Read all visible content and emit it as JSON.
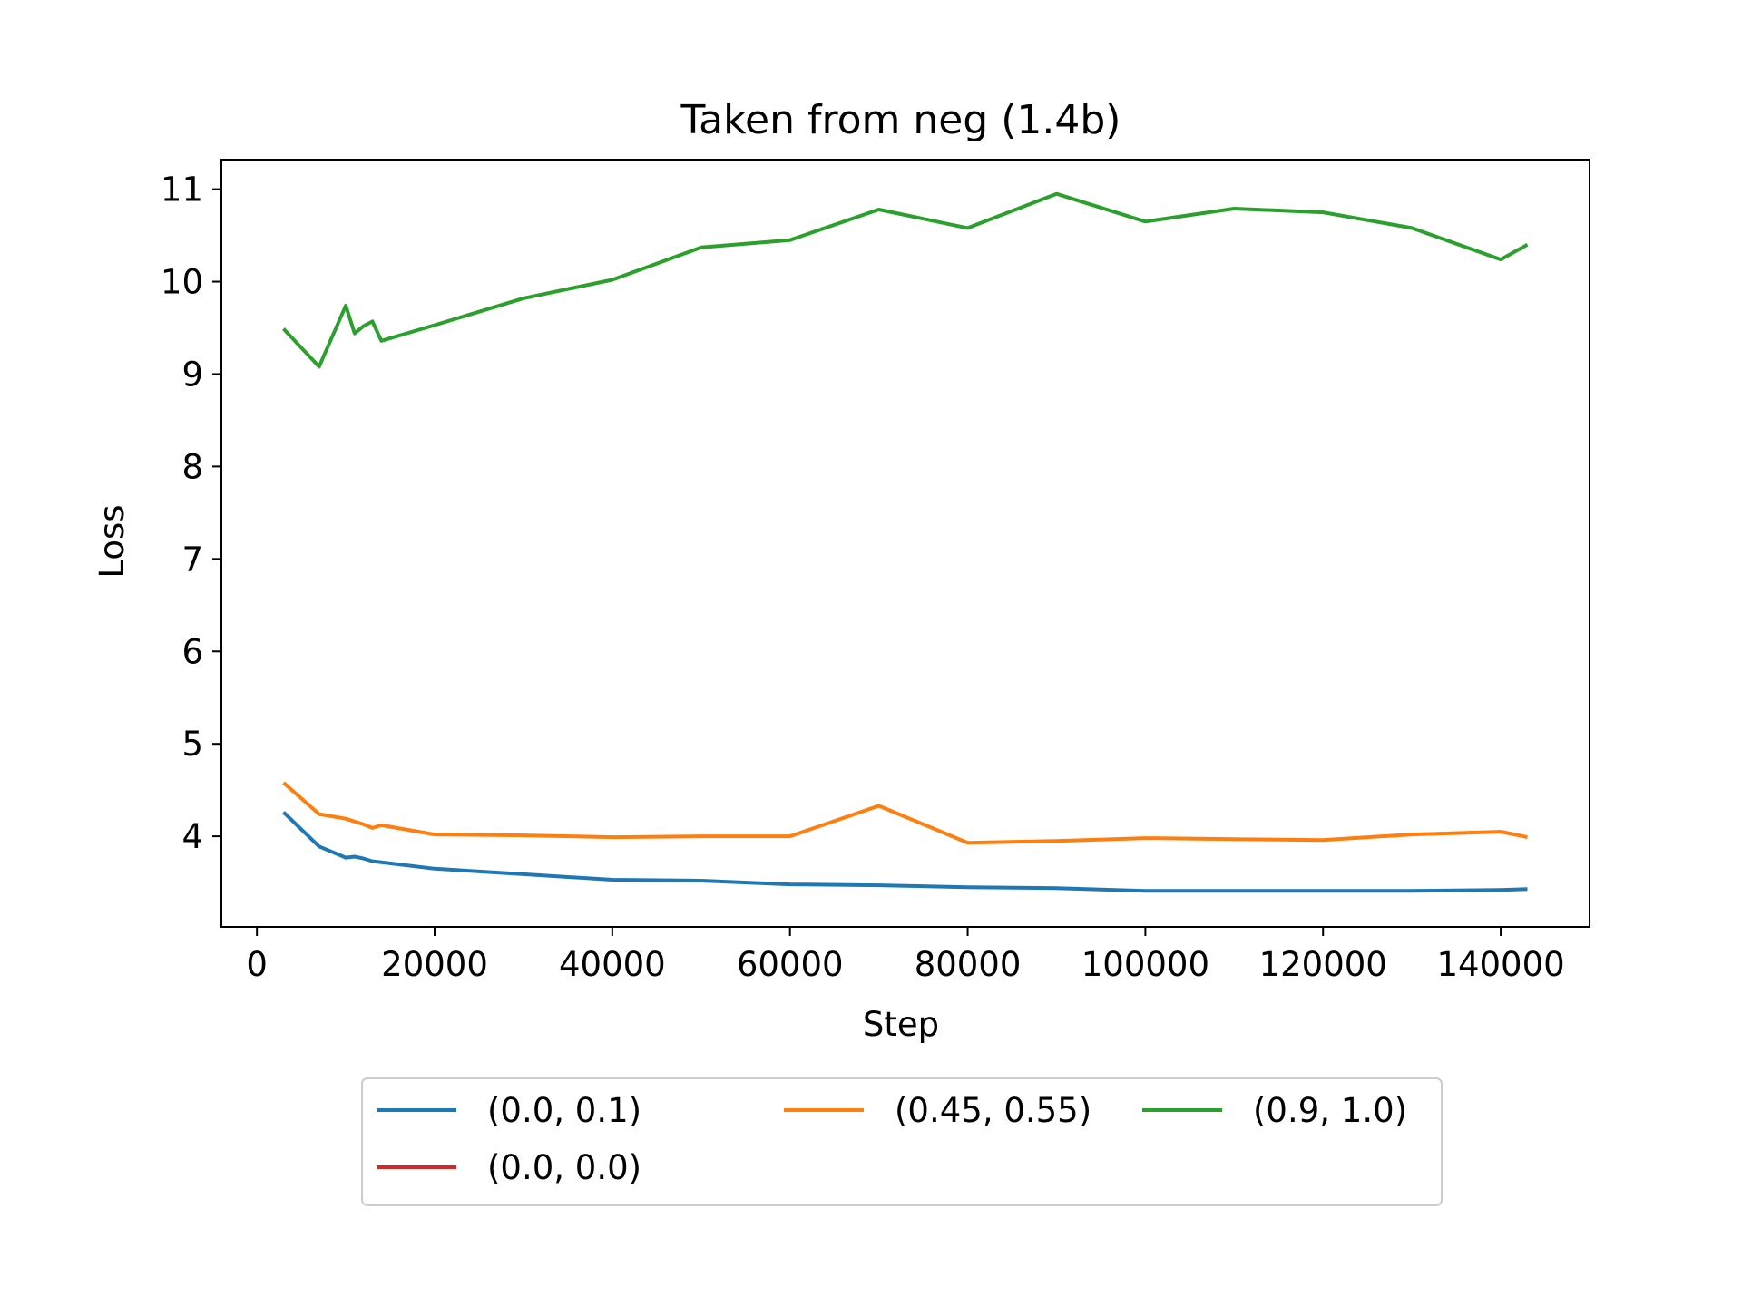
{
  "chart_data": {
    "type": "line",
    "title": "Taken from neg (1.4b)",
    "xlabel": "Step",
    "ylabel": "Loss",
    "xlim": [
      -4000,
      150000
    ],
    "ylim": [
      3.02,
      11.32
    ],
    "xticks": [
      0,
      20000,
      40000,
      60000,
      80000,
      100000,
      120000,
      140000
    ],
    "yticks": [
      4,
      5,
      6,
      7,
      8,
      9,
      10,
      11
    ],
    "grid": false,
    "legend_position": "below-center",
    "legend_columns": 3,
    "series": [
      {
        "name": "(0.0, 0.1)",
        "color": "#1f77b4",
        "x": [
          3000,
          7000,
          10000,
          11000,
          12000,
          13000,
          14000,
          20000,
          30000,
          40000,
          50000,
          60000,
          70000,
          80000,
          90000,
          100000,
          110000,
          120000,
          130000,
          140000,
          143000
        ],
        "y": [
          4.26,
          3.89,
          3.77,
          3.78,
          3.76,
          3.73,
          3.72,
          3.65,
          3.59,
          3.53,
          3.52,
          3.48,
          3.47,
          3.45,
          3.44,
          3.41,
          3.41,
          3.41,
          3.41,
          3.42,
          3.43
        ]
      },
      {
        "name": "(0.45, 0.55)",
        "color": "#ff7f0e",
        "x": [
          3000,
          7000,
          10000,
          11000,
          12000,
          13000,
          14000,
          20000,
          30000,
          40000,
          50000,
          60000,
          70000,
          80000,
          90000,
          100000,
          110000,
          120000,
          130000,
          140000,
          143000
        ],
        "y": [
          4.58,
          4.24,
          4.19,
          4.16,
          4.13,
          4.09,
          4.12,
          4.02,
          4.01,
          3.99,
          4.0,
          4.0,
          4.33,
          3.93,
          3.95,
          3.98,
          3.97,
          3.96,
          4.02,
          4.05,
          3.99
        ]
      },
      {
        "name": "(0.9, 1.0)",
        "color": "#2ca02c",
        "x": [
          3000,
          7000,
          10000,
          11000,
          12000,
          13000,
          14000,
          20000,
          30000,
          40000,
          50000,
          60000,
          70000,
          80000,
          90000,
          100000,
          110000,
          120000,
          130000,
          140000,
          143000
        ],
        "y": [
          9.49,
          9.08,
          9.74,
          9.44,
          9.52,
          9.57,
          9.36,
          9.53,
          9.82,
          10.02,
          10.37,
          10.45,
          10.78,
          10.58,
          10.95,
          10.65,
          10.79,
          10.75,
          10.58,
          10.24,
          10.4
        ]
      },
      {
        "name": "(0.0, 0.0)",
        "color": "#d62728",
        "x": [],
        "y": []
      }
    ]
  }
}
